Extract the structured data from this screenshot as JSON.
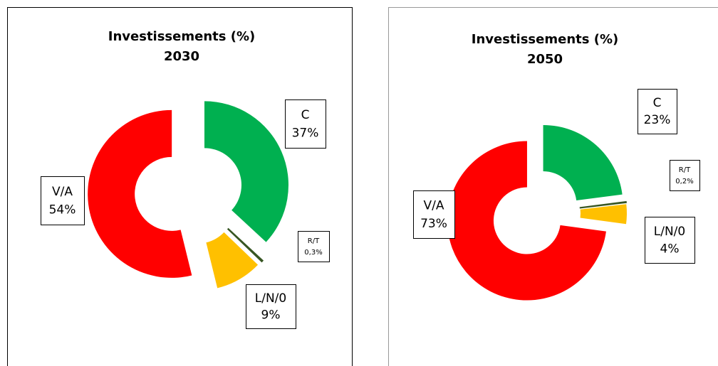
{
  "chart_data": [
    {
      "type": "donut",
      "title": "Investissements (%)",
      "subtitle": "2030",
      "categories": [
        "C",
        "R/T",
        "L/N/0",
        "V/A"
      ],
      "values": [
        37,
        0.3,
        9,
        54
      ],
      "value_labels": [
        "37%",
        "0,3%",
        "9%",
        "54%"
      ],
      "colors": [
        "#00b050",
        "#375623",
        "#ffc000",
        "#ff0000"
      ]
    },
    {
      "type": "donut",
      "title": "Investissements (%)",
      "subtitle": "2050",
      "categories": [
        "C",
        "R/T",
        "L/N/0",
        "V/A"
      ],
      "values": [
        23,
        0.2,
        4,
        73
      ],
      "value_labels": [
        "23%",
        "0,2%",
        "4%",
        "73%"
      ],
      "colors": [
        "#00b050",
        "#375623",
        "#ffc000",
        "#ff0000"
      ]
    }
  ]
}
